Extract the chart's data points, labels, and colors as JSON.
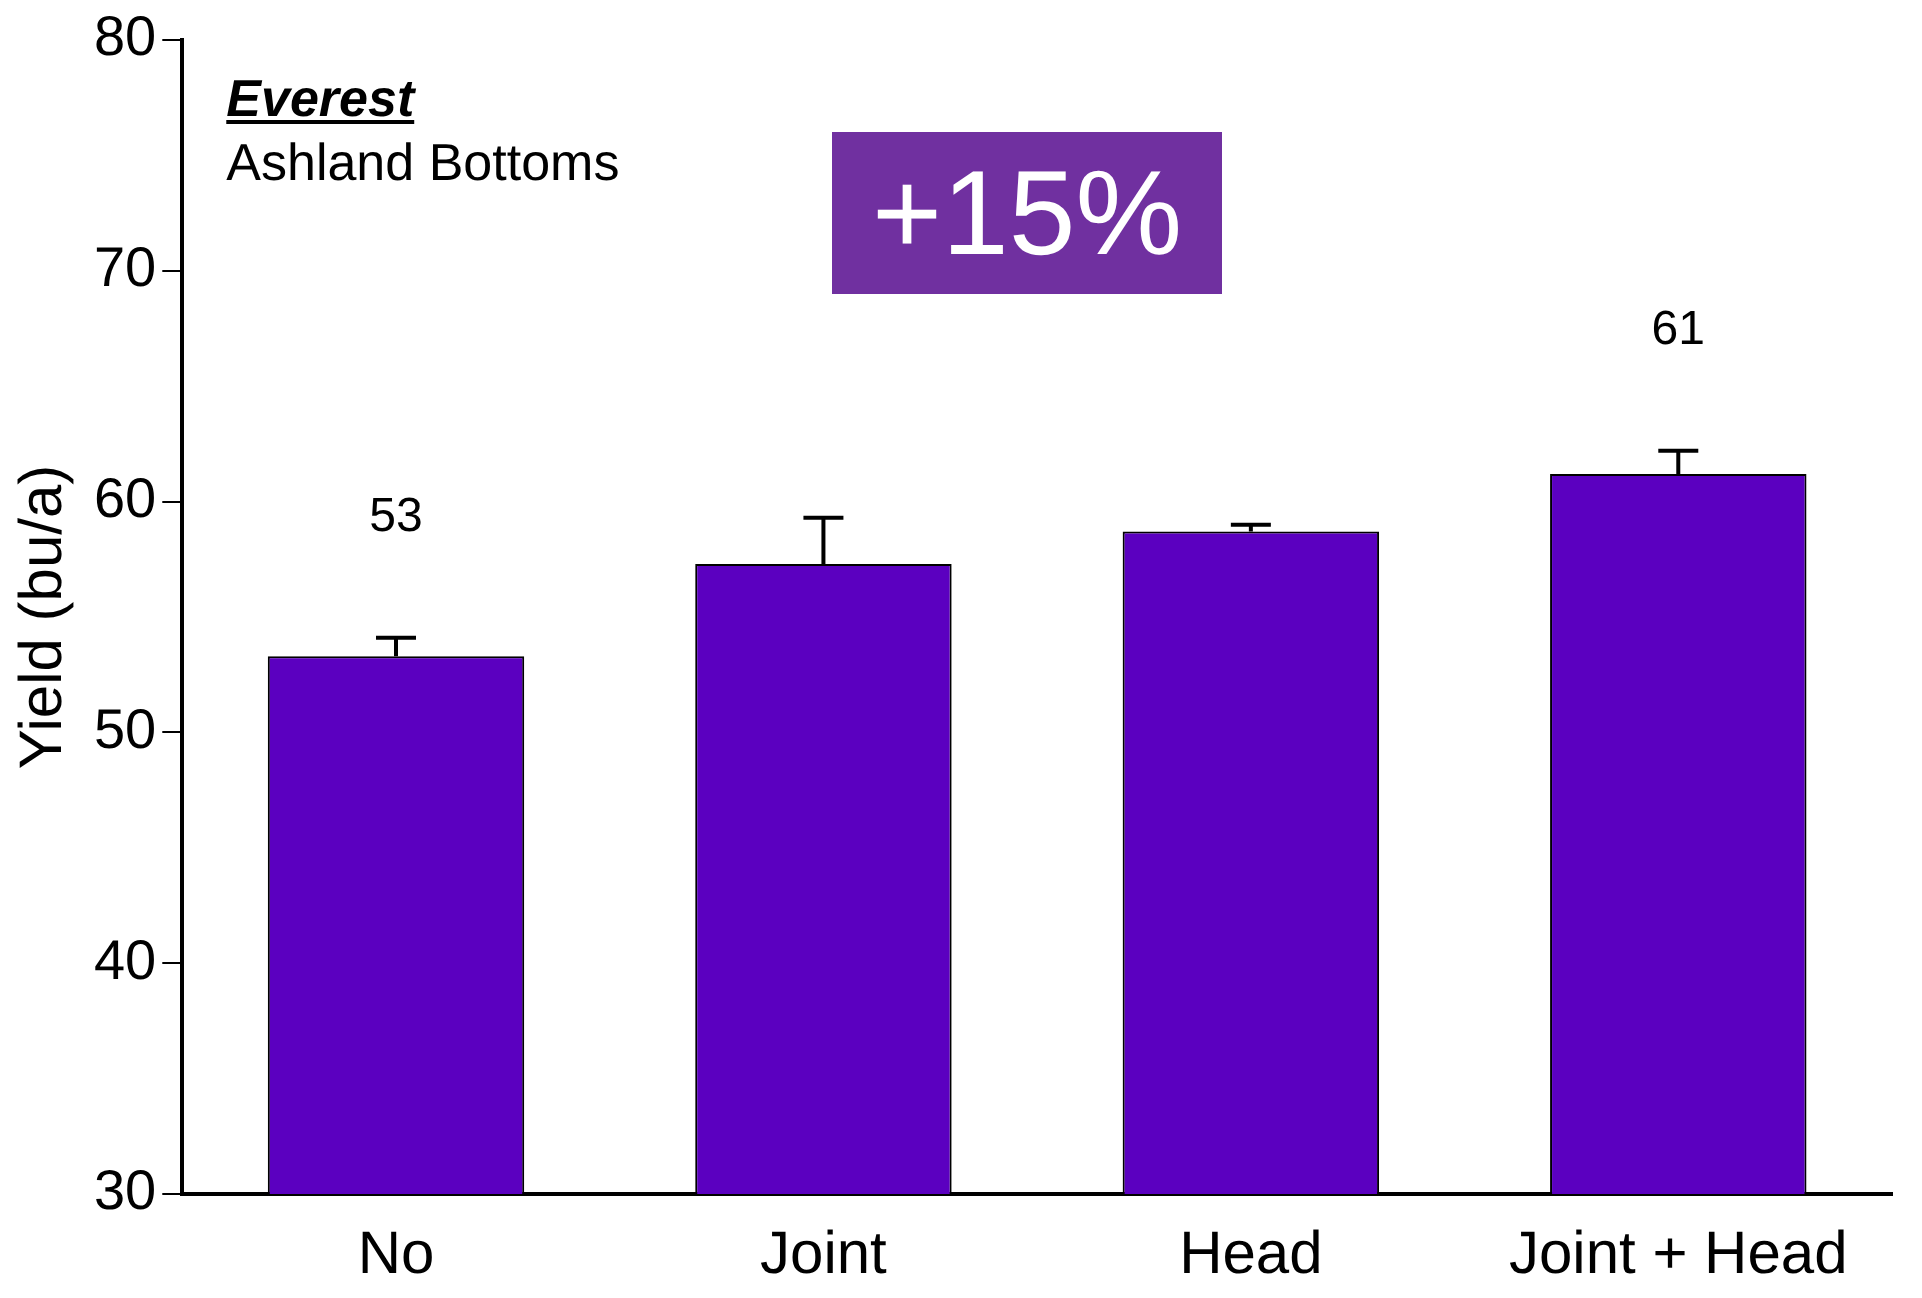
{
  "chart_data": {
    "type": "bar",
    "ylabel": "Yield (bu/a)",
    "categories": [
      "No",
      "Joint",
      "Head",
      "Joint + Head"
    ],
    "values": [
      53.3,
      57.3,
      58.7,
      61.2
    ],
    "value_labels": [
      "53",
      null,
      null,
      "61"
    ],
    "errors": [
      0.8,
      2.0,
      0.3,
      1.0
    ],
    "color": "#5b00c0",
    "ylim": [
      30,
      80
    ],
    "yticks": [
      30,
      40,
      50,
      60,
      70,
      80
    ],
    "grid": false,
    "legend": false,
    "annotations": [
      "Everest",
      "Ashland Bottoms",
      "+15%"
    ]
  }
}
